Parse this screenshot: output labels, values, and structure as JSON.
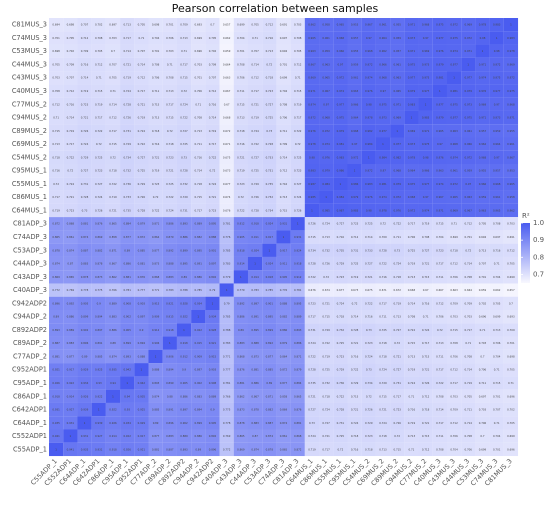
{
  "chart_data": {
    "type": "heatmap",
    "title": "Pearson correlation between samples",
    "x": [
      "C55ADP_1",
      "C552ADP1",
      "C64ADP_1",
      "C642ADP1",
      "C86ADP_1",
      "C95ADP_1",
      "C952ADP1",
      "C77ADP_2",
      "C89ADP_2",
      "C892ADP2",
      "C94ADP_2",
      "C942ADP2",
      "C40ADP_3",
      "C43ADP_3",
      "C44ADP_3",
      "C53ADP_3",
      "C74ADP_3",
      "C81ADP_3",
      "C64MUS_1",
      "C86MUS_1",
      "C55MUS_1",
      "C95MUS_1",
      "C54MUS_2",
      "C69MUS_2",
      "C89MUS_2",
      "C94MUS_2",
      "C77MUS_2",
      "C40MUS_3",
      "C43MUS_3",
      "C44MUS_3",
      "C53MUS_3",
      "C74MUS_3",
      "C81MUS_3"
    ],
    "y": [
      "C81MUS_3",
      "C74MUS_3",
      "C53MUS_3",
      "C44MUS_3",
      "C43MUS_3",
      "C40MUS_3",
      "C77MUS_2",
      "C94MUS_2",
      "C89MUS_2",
      "C69MUS_2",
      "C54MUS_2",
      "C95MUS_1",
      "C55MUS_1",
      "C86MUS_1",
      "C64MUS_1",
      "C81ADP_3",
      "C74ADP_3",
      "C53ADP_3",
      "C44ADP_3",
      "C43ADP_3",
      "C40ADP_3",
      "C942ADP2",
      "C94ADP_2",
      "C892ADP2",
      "C89ADP_2",
      "C77ADP_2",
      "C952ADP1",
      "C95ADP_1",
      "C86ADP_1",
      "C642ADP1",
      "C64ADP_1",
      "C552ADP1",
      "C55ADP_1"
    ],
    "values": [
      [
        0.694,
        0.698,
        0.707,
        0.702,
        0.697,
        0.713,
        0.705,
        0.698,
        0.701,
        0.709,
        0.693,
        0.7,
        0.657,
        0.699,
        0.705,
        0.712,
        0.691,
        0.703,
        0.962,
        0.958,
        0.965,
        0.953,
        0.967,
        0.961,
        0.955,
        0.971,
        0.968,
        0.975,
        0.972,
        0.969,
        0.978,
        0.983,
        1
      ],
      [
        0.701,
        0.705,
        0.712,
        0.708,
        0.703,
        0.717,
        0.71,
        0.704,
        0.706,
        0.713,
        0.699,
        0.705,
        0.662,
        0.704,
        0.71,
        0.716,
        0.697,
        0.708,
        0.965,
        0.961,
        0.968,
        0.957,
        0.97,
        0.964,
        0.959,
        0.973,
        0.97,
        0.977,
        0.975,
        0.972,
        0.98,
        1,
        0.983
      ],
      [
        0.698,
        0.702,
        0.709,
        0.705,
        0.7,
        0.714,
        0.707,
        0.701,
        0.703,
        0.71,
        0.696,
        0.702,
        0.659,
        0.701,
        0.707,
        0.713,
        0.694,
        0.705,
        0.963,
        0.959,
        0.966,
        0.955,
        0.968,
        0.962,
        0.957,
        0.971,
        0.969,
        0.976,
        0.974,
        0.971,
        1,
        0.98,
        0.978
      ],
      [
        0.705,
        0.709,
        0.716,
        0.712,
        0.707,
        0.721,
        0.714,
        0.708,
        0.71,
        0.717,
        0.703,
        0.709,
        0.664,
        0.708,
        0.714,
        0.72,
        0.701,
        0.712,
        0.967,
        0.963,
        0.97,
        0.959,
        0.972,
        0.966,
        0.961,
        0.975,
        0.973,
        0.979,
        0.977,
        1,
        0.971,
        0.972,
        0.969
      ],
      [
        0.703,
        0.707,
        0.714,
        0.71,
        0.705,
        0.719,
        0.712,
        0.706,
        0.708,
        0.715,
        0.701,
        0.707,
        0.663,
        0.706,
        0.712,
        0.718,
        0.699,
        0.71,
        0.969,
        0.965,
        0.972,
        0.961,
        0.974,
        0.968,
        0.963,
        0.977,
        0.975,
        0.981,
        1,
        0.977,
        0.974,
        0.975,
        0.972
      ],
      [
        0.708,
        0.712,
        0.719,
        0.715,
        0.71,
        0.724,
        0.717,
        0.711,
        0.713,
        0.72,
        0.706,
        0.712,
        0.667,
        0.711,
        0.717,
        0.723,
        0.704,
        0.715,
        0.971,
        0.967,
        0.974,
        0.963,
        0.976,
        0.97,
        0.965,
        0.979,
        0.977,
        1,
        0.981,
        0.979,
        0.976,
        0.977,
        0.975
      ],
      [
        0.712,
        0.716,
        0.723,
        0.719,
        0.714,
        0.728,
        0.721,
        0.715,
        0.717,
        0.724,
        0.71,
        0.716,
        0.67,
        0.715,
        0.721,
        0.727,
        0.708,
        0.719,
        0.974,
        0.97,
        0.977,
        0.966,
        0.98,
        0.975,
        0.971,
        0.983,
        1,
        0.977,
        0.975,
        0.973,
        0.969,
        0.97,
        0.968
      ],
      [
        0.71,
        0.714,
        0.721,
        0.717,
        0.712,
        0.726,
        0.719,
        0.713,
        0.715,
        0.722,
        0.708,
        0.714,
        0.668,
        0.713,
        0.719,
        0.725,
        0.706,
        0.717,
        0.972,
        0.968,
        0.975,
        0.964,
        0.978,
        0.973,
        0.969,
        1,
        0.983,
        0.979,
        0.977,
        0.975,
        0.971,
        0.973,
        0.971
      ],
      [
        0.715,
        0.719,
        0.726,
        0.722,
        0.717,
        0.731,
        0.724,
        0.718,
        0.72,
        0.727,
        0.713,
        0.719,
        0.672,
        0.718,
        0.724,
        0.73,
        0.711,
        0.722,
        0.976,
        0.972,
        0.979,
        0.968,
        0.982,
        0.977,
        1,
        0.969,
        0.971,
        0.965,
        0.963,
        0.961,
        0.957,
        0.959,
        0.955
      ],
      [
        0.713,
        0.717,
        0.724,
        0.72,
        0.715,
        0.729,
        0.722,
        0.716,
        0.718,
        0.725,
        0.711,
        0.717,
        0.671,
        0.716,
        0.722,
        0.728,
        0.709,
        0.72,
        0.978,
        0.974,
        0.981,
        0.97,
        0.984,
        1,
        0.977,
        0.973,
        0.975,
        0.97,
        0.968,
        0.966,
        0.962,
        0.964,
        0.961
      ],
      [
        0.718,
        0.722,
        0.729,
        0.725,
        0.72,
        0.734,
        0.727,
        0.721,
        0.723,
        0.73,
        0.716,
        0.722,
        0.675,
        0.721,
        0.727,
        0.733,
        0.714,
        0.725,
        0.98,
        0.976,
        0.983,
        0.972,
        1,
        0.984,
        0.982,
        0.978,
        0.98,
        0.976,
        0.974,
        0.972,
        0.968,
        0.97,
        0.967
      ],
      [
        0.716,
        0.72,
        0.727,
        0.723,
        0.718,
        0.732,
        0.725,
        0.719,
        0.721,
        0.728,
        0.714,
        0.72,
        0.673,
        0.719,
        0.725,
        0.731,
        0.712,
        0.723,
        0.983,
        0.979,
        0.986,
        1,
        0.972,
        0.97,
        0.968,
        0.964,
        0.966,
        0.963,
        0.961,
        0.959,
        0.955,
        0.957,
        0.953
      ],
      [
        0.72,
        0.724,
        0.731,
        0.727,
        0.722,
        0.736,
        0.729,
        0.723,
        0.725,
        0.732,
        0.718,
        0.724,
        0.677,
        0.723,
        0.729,
        0.735,
        0.716,
        0.727,
        0.987,
        0.984,
        1,
        0.986,
        0.983,
        0.981,
        0.979,
        0.975,
        0.977,
        0.974,
        0.972,
        0.97,
        0.966,
        0.968,
        0.965
      ],
      [
        0.717,
        0.721,
        0.728,
        0.724,
        0.719,
        0.733,
        0.726,
        0.72,
        0.722,
        0.729,
        0.715,
        0.721,
        0.674,
        0.72,
        0.726,
        0.732,
        0.713,
        0.724,
        0.985,
        1,
        0.984,
        0.979,
        0.976,
        0.974,
        0.972,
        0.968,
        0.97,
        0.967,
        0.965,
        0.963,
        0.959,
        0.961,
        0.958
      ],
      [
        0.719,
        0.723,
        0.73,
        0.726,
        0.721,
        0.735,
        0.728,
        0.722,
        0.724,
        0.731,
        0.717,
        0.723,
        0.676,
        0.722,
        0.728,
        0.734,
        0.715,
        0.726,
        1,
        0.985,
        0.987,
        0.983,
        0.98,
        0.978,
        0.976,
        0.972,
        0.974,
        0.971,
        0.969,
        0.967,
        0.963,
        0.965,
        0.962
      ],
      [
        0.872,
        0.868,
        0.881,
        0.876,
        0.865,
        0.884,
        0.879,
        0.871,
        0.886,
        0.893,
        0.889,
        0.895,
        0.781,
        0.912,
        0.918,
        0.924,
        0.931,
        1,
        0.726,
        0.724,
        0.727,
        0.723,
        0.725,
        0.72,
        0.722,
        0.717,
        0.719,
        0.715,
        0.71,
        0.712,
        0.705,
        0.708,
        0.703
      ],
      [
        0.865,
        0.861,
        0.874,
        0.869,
        0.858,
        0.877,
        0.872,
        0.864,
        0.879,
        0.886,
        0.882,
        0.888,
        0.776,
        0.905,
        0.911,
        0.917,
        1,
        0.931,
        0.715,
        0.713,
        0.716,
        0.712,
        0.714,
        0.709,
        0.711,
        0.706,
        0.708,
        0.704,
        0.699,
        0.701,
        0.694,
        0.697,
        0.691
      ],
      [
        0.878,
        0.874,
        0.887,
        0.882,
        0.871,
        0.89,
        0.885,
        0.877,
        0.892,
        0.899,
        0.895,
        0.901,
        0.785,
        0.918,
        0.924,
        1,
        0.917,
        0.924,
        0.734,
        0.732,
        0.735,
        0.731,
        0.733,
        0.728,
        0.73,
        0.725,
        0.727,
        0.723,
        0.718,
        0.72,
        0.713,
        0.716,
        0.712
      ],
      [
        0.874,
        0.87,
        0.883,
        0.878,
        0.867,
        0.886,
        0.881,
        0.873,
        0.888,
        0.895,
        0.891,
        0.897,
        0.783,
        0.914,
        1,
        0.924,
        0.911,
        0.918,
        0.728,
        0.726,
        0.729,
        0.725,
        0.727,
        0.722,
        0.724,
        0.719,
        0.721,
        0.717,
        0.712,
        0.714,
        0.707,
        0.71,
        0.705
      ],
      [
        0.869,
        0.865,
        0.878,
        0.873,
        0.862,
        0.881,
        0.876,
        0.868,
        0.883,
        0.89,
        0.886,
        0.892,
        0.779,
        1,
        0.914,
        0.918,
        0.905,
        0.912,
        0.722,
        0.72,
        0.723,
        0.719,
        0.721,
        0.716,
        0.718,
        0.713,
        0.715,
        0.711,
        0.706,
        0.708,
        0.701,
        0.704,
        0.699
      ],
      [
        0.772,
        0.769,
        0.778,
        0.775,
        0.766,
        0.781,
        0.777,
        0.771,
        0.783,
        0.788,
        0.785,
        0.79,
        1,
        0.779,
        0.783,
        0.785,
        0.776,
        0.781,
        0.676,
        0.674,
        0.677,
        0.673,
        0.675,
        0.671,
        0.672,
        0.668,
        0.67,
        0.667,
        0.663,
        0.664,
        0.659,
        0.662,
        0.657
      ],
      [
        0.896,
        0.892,
        0.905,
        0.9,
        0.889,
        0.908,
        0.903,
        0.915,
        0.921,
        0.928,
        0.934,
        1,
        0.79,
        0.892,
        0.897,
        0.901,
        0.888,
        0.895,
        0.723,
        0.721,
        0.724,
        0.72,
        0.722,
        0.717,
        0.719,
        0.714,
        0.716,
        0.712,
        0.709,
        0.709,
        0.702,
        0.705,
        0.7
      ],
      [
        0.89,
        0.886,
        0.899,
        0.894,
        0.883,
        0.902,
        0.897,
        0.909,
        0.915,
        0.922,
        1,
        0.934,
        0.785,
        0.886,
        0.891,
        0.895,
        0.882,
        0.889,
        0.717,
        0.715,
        0.718,
        0.714,
        0.716,
        0.711,
        0.713,
        0.708,
        0.71,
        0.706,
        0.703,
        0.703,
        0.696,
        0.699,
        0.693
      ],
      [
        0.893,
        0.889,
        0.902,
        0.897,
        0.886,
        0.905,
        0.9,
        0.912,
        0.918,
        1,
        0.922,
        0.928,
        0.788,
        0.89,
        0.895,
        0.899,
        0.886,
        0.893,
        0.731,
        0.729,
        0.732,
        0.728,
        0.73,
        0.725,
        0.727,
        0.722,
        0.724,
        0.72,
        0.715,
        0.717,
        0.71,
        0.713,
        0.709
      ],
      [
        0.887,
        0.883,
        0.896,
        0.891,
        0.88,
        0.899,
        0.894,
        0.906,
        1,
        0.918,
        0.915,
        0.921,
        0.783,
        0.883,
        0.888,
        0.892,
        0.879,
        0.886,
        0.724,
        0.722,
        0.725,
        0.721,
        0.723,
        0.718,
        0.72,
        0.715,
        0.717,
        0.713,
        0.708,
        0.71,
        0.703,
        0.706,
        0.701
      ],
      [
        0.881,
        0.877,
        0.89,
        0.885,
        0.874,
        0.893,
        0.888,
        1,
        0.906,
        0.912,
        0.909,
        0.915,
        0.771,
        0.868,
        0.873,
        0.877,
        0.864,
        0.871,
        0.722,
        0.719,
        0.723,
        0.716,
        0.724,
        0.718,
        0.721,
        0.713,
        0.715,
        0.711,
        0.706,
        0.708,
        0.7,
        0.704,
        0.698
      ],
      [
        0.921,
        0.917,
        0.929,
        0.925,
        0.935,
        0.942,
        1,
        0.888,
        0.894,
        0.9,
        0.897,
        0.903,
        0.777,
        0.876,
        0.881,
        0.885,
        0.872,
        0.879,
        0.728,
        0.725,
        0.729,
        0.722,
        0.73,
        0.724,
        0.727,
        0.719,
        0.721,
        0.717,
        0.712,
        0.714,
        0.706,
        0.71,
        0.705
      ],
      [
        0.926,
        0.922,
        0.934,
        0.93,
        0.94,
        1,
        0.942,
        0.893,
        0.899,
        0.905,
        0.902,
        0.908,
        0.781,
        0.881,
        0.886,
        0.89,
        0.877,
        0.884,
        0.735,
        0.732,
        0.736,
        0.729,
        0.734,
        0.729,
        0.731,
        0.724,
        0.726,
        0.722,
        0.717,
        0.719,
        0.711,
        0.715,
        0.71
      ],
      [
        0.918,
        0.914,
        0.926,
        0.922,
        1,
        0.94,
        0.935,
        0.874,
        0.88,
        0.886,
        0.883,
        0.889,
        0.766,
        0.862,
        0.867,
        0.871,
        0.858,
        0.865,
        0.721,
        0.718,
        0.722,
        0.715,
        0.72,
        0.715,
        0.717,
        0.71,
        0.712,
        0.708,
        0.703,
        0.705,
        0.697,
        0.701,
        0.696
      ],
      [
        0.931,
        0.927,
        0.939,
        1,
        0.922,
        0.93,
        0.925,
        0.885,
        0.891,
        0.897,
        0.894,
        0.9,
        0.775,
        0.873,
        0.878,
        0.882,
        0.869,
        0.876,
        0.727,
        0.724,
        0.728,
        0.721,
        0.726,
        0.721,
        0.723,
        0.716,
        0.718,
        0.714,
        0.709,
        0.711,
        0.703,
        0.707,
        0.702
      ],
      [
        0.935,
        0.931,
        1,
        0.939,
        0.926,
        0.934,
        0.929,
        0.89,
        0.896,
        0.902,
        0.899,
        0.905,
        0.778,
        0.878,
        0.883,
        0.887,
        0.874,
        0.881,
        0.73,
        0.727,
        0.731,
        0.724,
        0.729,
        0.724,
        0.726,
        0.719,
        0.721,
        0.717,
        0.712,
        0.714,
        0.706,
        0.71,
        0.705
      ],
      [
        0.941,
        1,
        0.931,
        0.927,
        0.914,
        0.922,
        0.917,
        0.877,
        0.883,
        0.889,
        0.886,
        0.892,
        0.769,
        0.865,
        0.87,
        0.874,
        0.861,
        0.868,
        0.724,
        0.721,
        0.725,
        0.718,
        0.723,
        0.718,
        0.72,
        0.713,
        0.715,
        0.711,
        0.706,
        0.708,
        0.7,
        0.704,
        0.699
      ],
      [
        1,
        0.941,
        0.935,
        0.931,
        0.918,
        0.926,
        0.921,
        0.881,
        0.887,
        0.893,
        0.89,
        0.896,
        0.772,
        0.869,
        0.874,
        0.878,
        0.865,
        0.872,
        0.719,
        0.717,
        0.72,
        0.716,
        0.718,
        0.713,
        0.715,
        0.71,
        0.712,
        0.708,
        0.704,
        0.706,
        0.699,
        0.701,
        0.696
      ]
    ],
    "zlim": [
      0.65,
      1
    ],
    "colors": {
      "low": "#f8f8fe",
      "high": "#4a5cf0"
    },
    "legend": {
      "title": "R²",
      "ticks": [
        {
          "value": 1,
          "label": "1.0"
        },
        0.9,
        0.8,
        0.7
      ]
    }
  }
}
